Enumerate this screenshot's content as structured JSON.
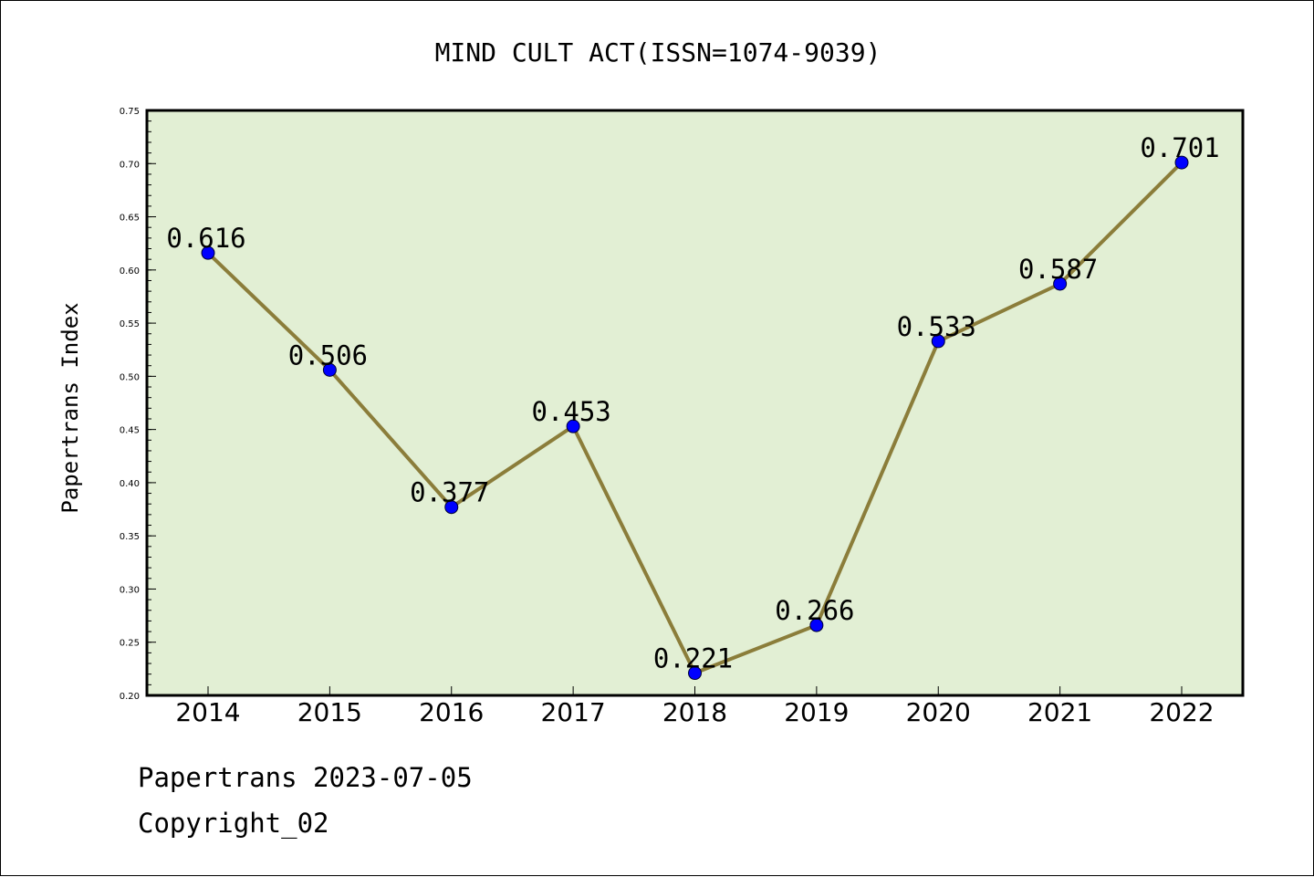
{
  "chart_data": {
    "type": "line",
    "title": "MIND CULT ACT(ISSN=1074-9039)",
    "xlabel": "",
    "ylabel": "Papertrans Index",
    "categories": [
      "2014",
      "2015",
      "2016",
      "2017",
      "2018",
      "2019",
      "2020",
      "2021",
      "2022"
    ],
    "series": [
      {
        "values": [
          0.616,
          0.506,
          0.377,
          0.453,
          0.221,
          0.266,
          0.533,
          0.587,
          0.701
        ]
      }
    ],
    "data_labels": [
      "0.616",
      "0.506",
      "0.377",
      "0.453",
      "0.221",
      "0.266",
      "0.533",
      "0.587",
      "0.701"
    ],
    "ylim": [
      0.2,
      0.75
    ],
    "yticks": [
      "0.20",
      "0.25",
      "0.30",
      "0.35",
      "0.40",
      "0.45",
      "0.50",
      "0.55",
      "0.60",
      "0.65",
      "0.70",
      "0.75"
    ],
    "grid": false,
    "legend": "none",
    "colors": {
      "plot_background": "#e2efd4",
      "line": "#8b7d3a",
      "marker": "#0000ff"
    }
  },
  "footer": {
    "line1": "Papertrans 2023-07-05",
    "line2": "Copyright_02"
  }
}
